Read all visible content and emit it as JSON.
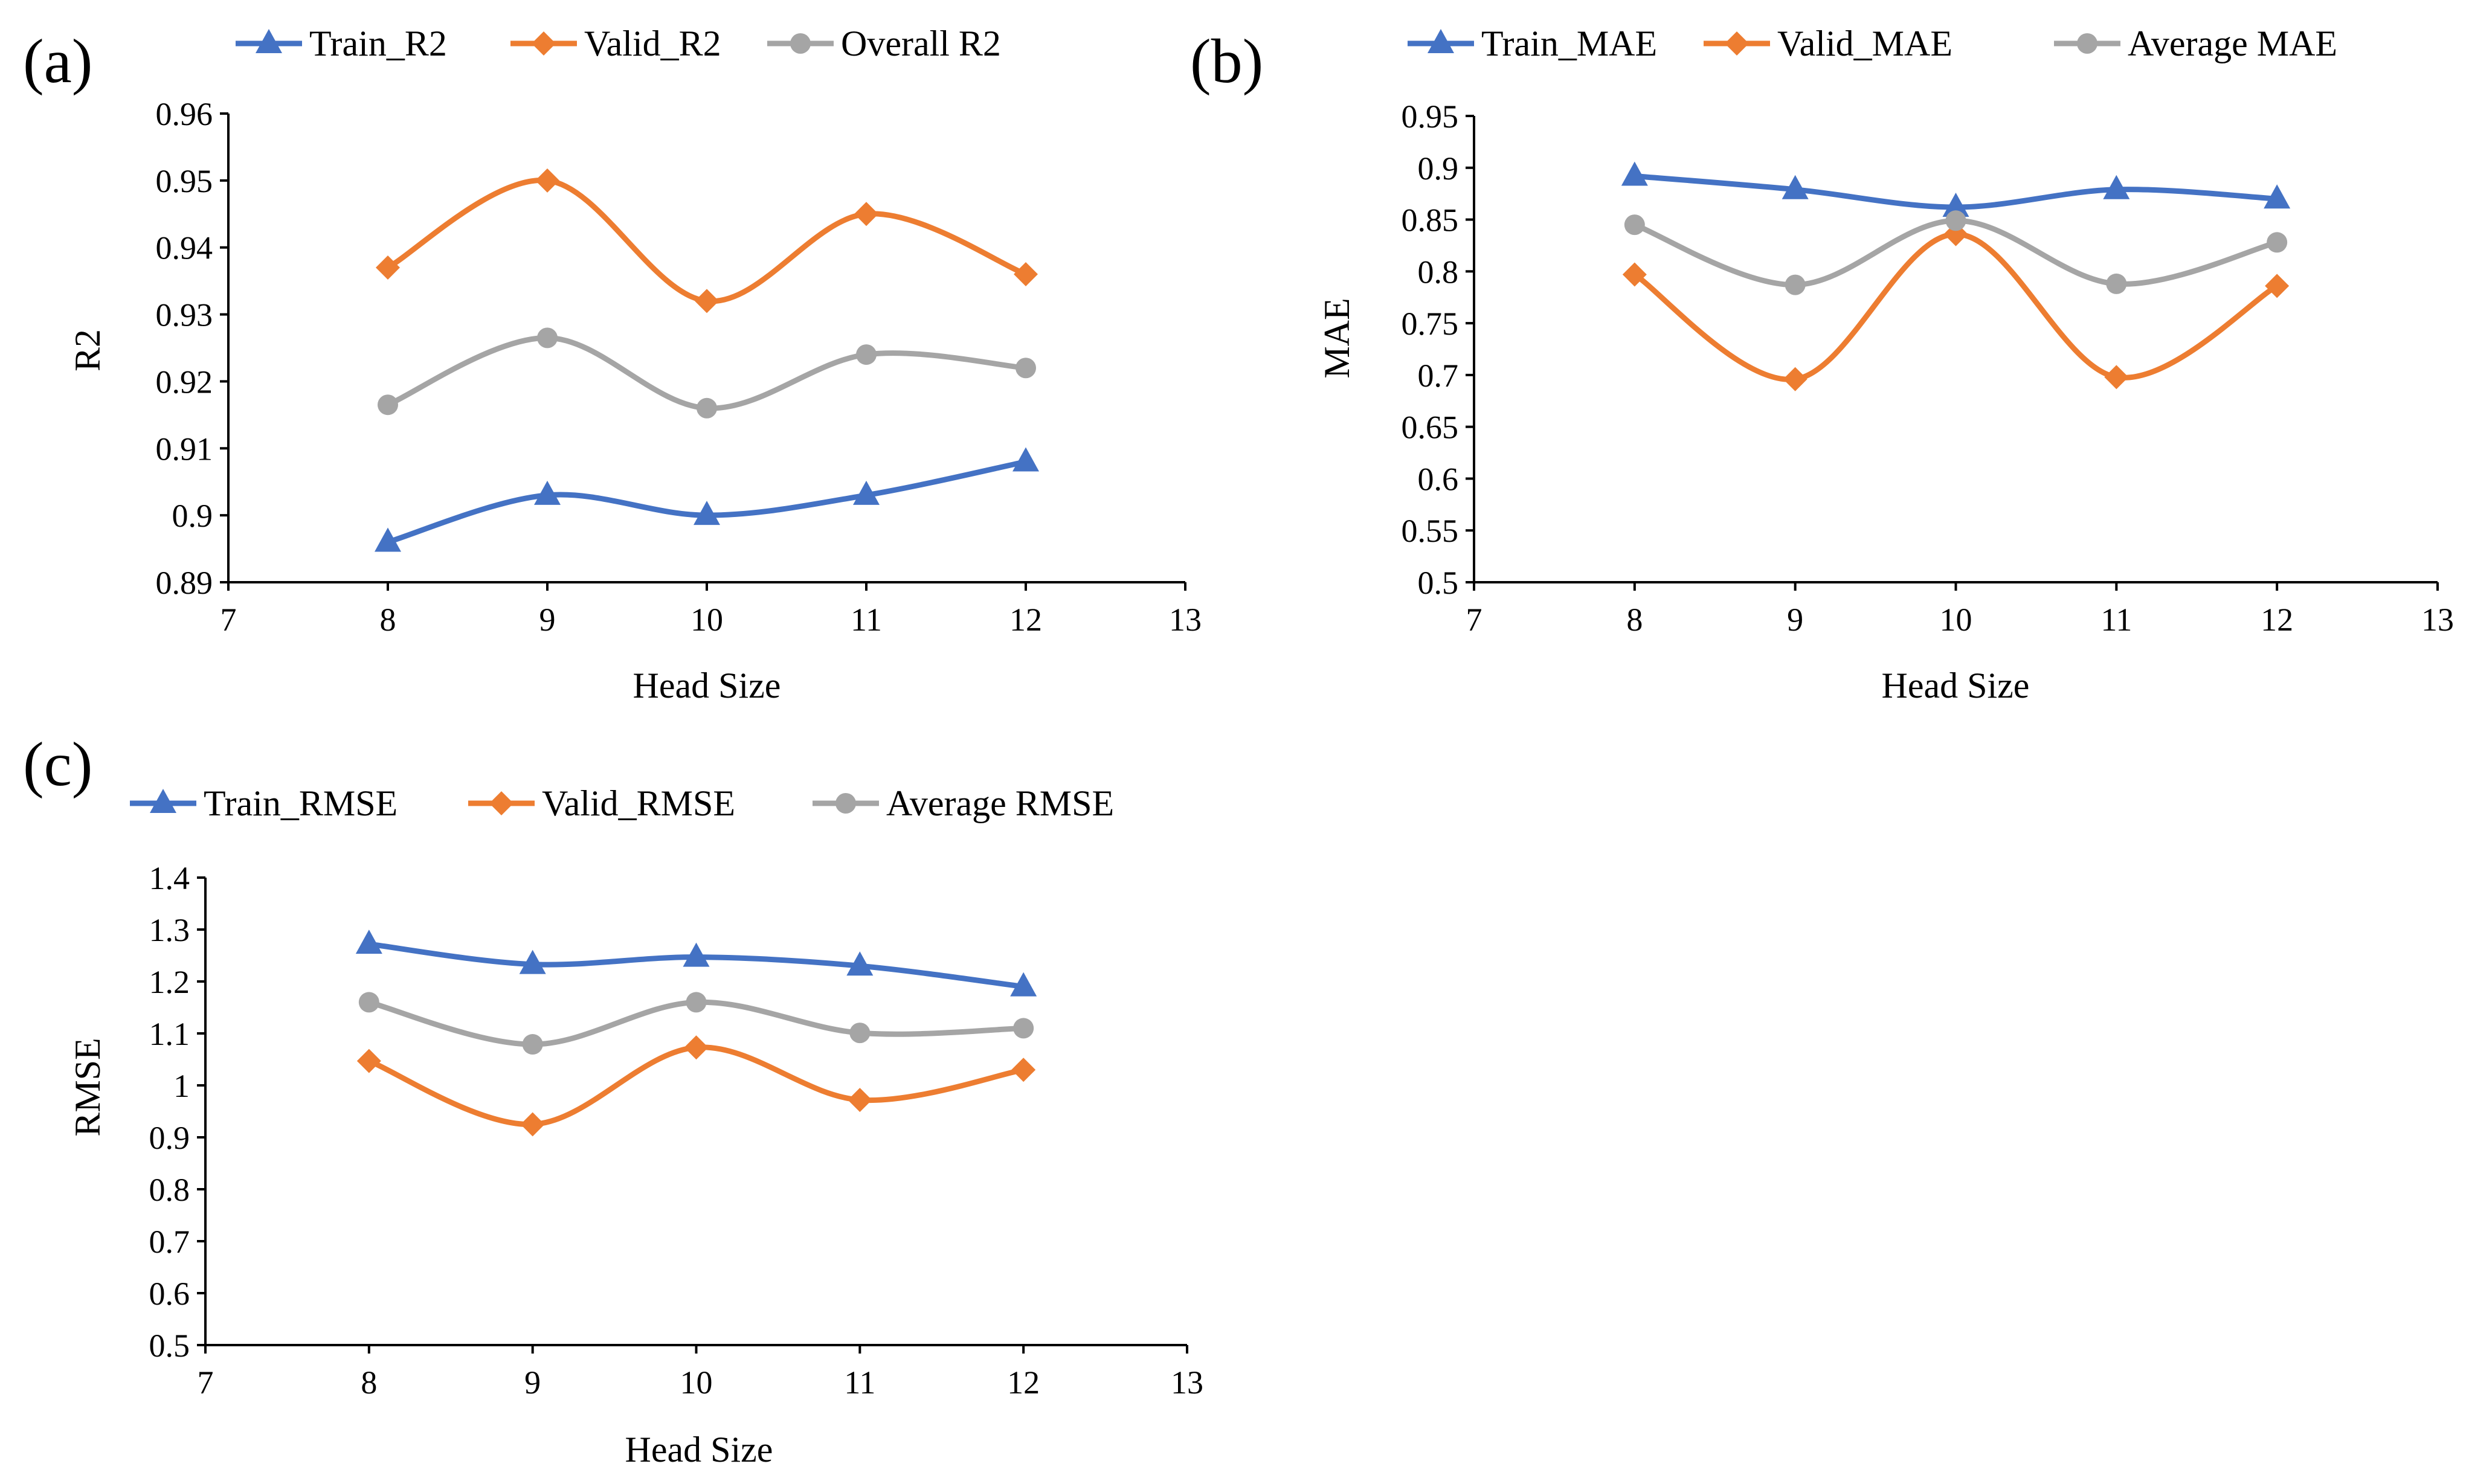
{
  "chart_data": [
    {
      "panel_label": "(a)",
      "type": "line",
      "smooth": true,
      "xlabel": "Head Size",
      "ylabel": "R2",
      "xlim": [
        7,
        13
      ],
      "xticks": [
        7,
        8,
        9,
        10,
        11,
        12,
        13
      ],
      "ylim": [
        0.89,
        0.96
      ],
      "yticks": [
        "0.89",
        "0.9",
        "0.91",
        "0.92",
        "0.93",
        "0.94",
        "0.95",
        "0.96"
      ],
      "grid": false,
      "legend": "top",
      "x": [
        8,
        9,
        10,
        11,
        12
      ],
      "series": [
        {
          "name": "Train_R2",
          "marker": "triangle",
          "color": "#4472C4",
          "values": [
            0.896,
            0.903,
            0.9,
            0.903,
            0.908
          ]
        },
        {
          "name": "Valid_R2",
          "marker": "diamond",
          "color": "#ED7D31",
          "values": [
            0.937,
            0.95,
            0.932,
            0.945,
            0.936
          ]
        },
        {
          "name": "Overall R2",
          "marker": "circle",
          "color": "#A5A5A5",
          "values": [
            0.9165,
            0.9265,
            0.916,
            0.924,
            0.922
          ]
        }
      ]
    },
    {
      "panel_label": "(b)",
      "type": "line",
      "smooth": true,
      "xlabel": "Head Size",
      "ylabel": "MAE",
      "xlim": [
        7,
        13
      ],
      "xticks": [
        7,
        8,
        9,
        10,
        11,
        12,
        13
      ],
      "ylim": [
        0.5,
        0.95
      ],
      "yticks": [
        "0.5",
        "0.55",
        "0.6",
        "0.65",
        "0.7",
        "0.75",
        "0.8",
        "0.85",
        "0.9",
        "0.95"
      ],
      "grid": false,
      "legend": "top",
      "x": [
        8,
        9,
        10,
        11,
        12
      ],
      "series": [
        {
          "name": "Train_MAE",
          "marker": "triangle",
          "color": "#4472C4",
          "values": [
            0.892,
            0.879,
            0.862,
            0.879,
            0.87
          ]
        },
        {
          "name": "Valid_MAE",
          "marker": "diamond",
          "color": "#ED7D31",
          "values": [
            0.797,
            0.696,
            0.836,
            0.698,
            0.786
          ]
        },
        {
          "name": "Average MAE",
          "marker": "circle",
          "color": "#A5A5A5",
          "values": [
            0.845,
            0.787,
            0.849,
            0.788,
            0.828
          ]
        }
      ]
    },
    {
      "panel_label": "(c)",
      "type": "line",
      "smooth": true,
      "xlabel": "Head Size",
      "ylabel": "RMSE",
      "xlim": [
        7,
        13
      ],
      "xticks": [
        7,
        8,
        9,
        10,
        11,
        12,
        13
      ],
      "ylim": [
        0.5,
        1.4
      ],
      "yticks": [
        "0.5",
        "0.6",
        "0.7",
        "0.8",
        "0.9",
        "1",
        "1.1",
        "1.2",
        "1.3",
        "1.4"
      ],
      "grid": false,
      "legend": "top",
      "x": [
        8,
        9,
        10,
        11,
        12
      ],
      "series": [
        {
          "name": "Train_RMSE",
          "marker": "triangle",
          "color": "#4472C4",
          "values": [
            1.272,
            1.233,
            1.247,
            1.23,
            1.19
          ]
        },
        {
          "name": "Valid_RMSE",
          "marker": "diamond",
          "color": "#ED7D31",
          "values": [
            1.047,
            0.925,
            1.073,
            0.972,
            1.03
          ]
        },
        {
          "name": "Average RMSE",
          "marker": "circle",
          "color": "#A5A5A5",
          "values": [
            1.16,
            1.079,
            1.16,
            1.101,
            1.11
          ]
        }
      ]
    }
  ]
}
